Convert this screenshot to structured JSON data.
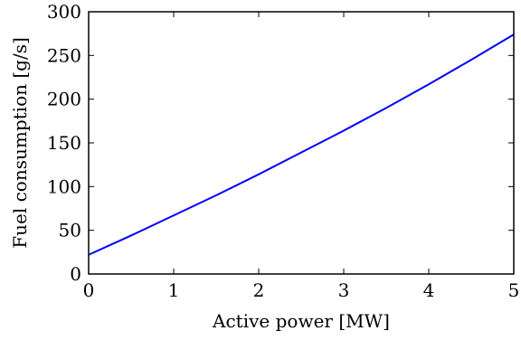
{
  "chart_data": {
    "type": "line",
    "title": "",
    "xlabel": "Active power [MW]",
    "ylabel": "Fuel consumption [g/s]",
    "xlim": [
      0,
      5
    ],
    "ylim": [
      0,
      300
    ],
    "xticks": [
      0,
      1,
      2,
      3,
      4,
      5
    ],
    "yticks": [
      0,
      50,
      100,
      150,
      200,
      250,
      300
    ],
    "xtick_labels": [
      "0",
      "1",
      "2",
      "3",
      "4",
      "5"
    ],
    "ytick_labels": [
      "0",
      "50",
      "100",
      "150",
      "200",
      "250",
      "300"
    ],
    "grid": false,
    "series": [
      {
        "color": "#0000ff",
        "x": [
          0,
          0.5,
          1,
          1.5,
          2,
          2.5,
          3,
          3.5,
          4,
          4.5,
          5
        ],
        "y": [
          22,
          44,
          67,
          90,
          114,
          139,
          164,
          190,
          217,
          245,
          274
        ]
      }
    ]
  }
}
